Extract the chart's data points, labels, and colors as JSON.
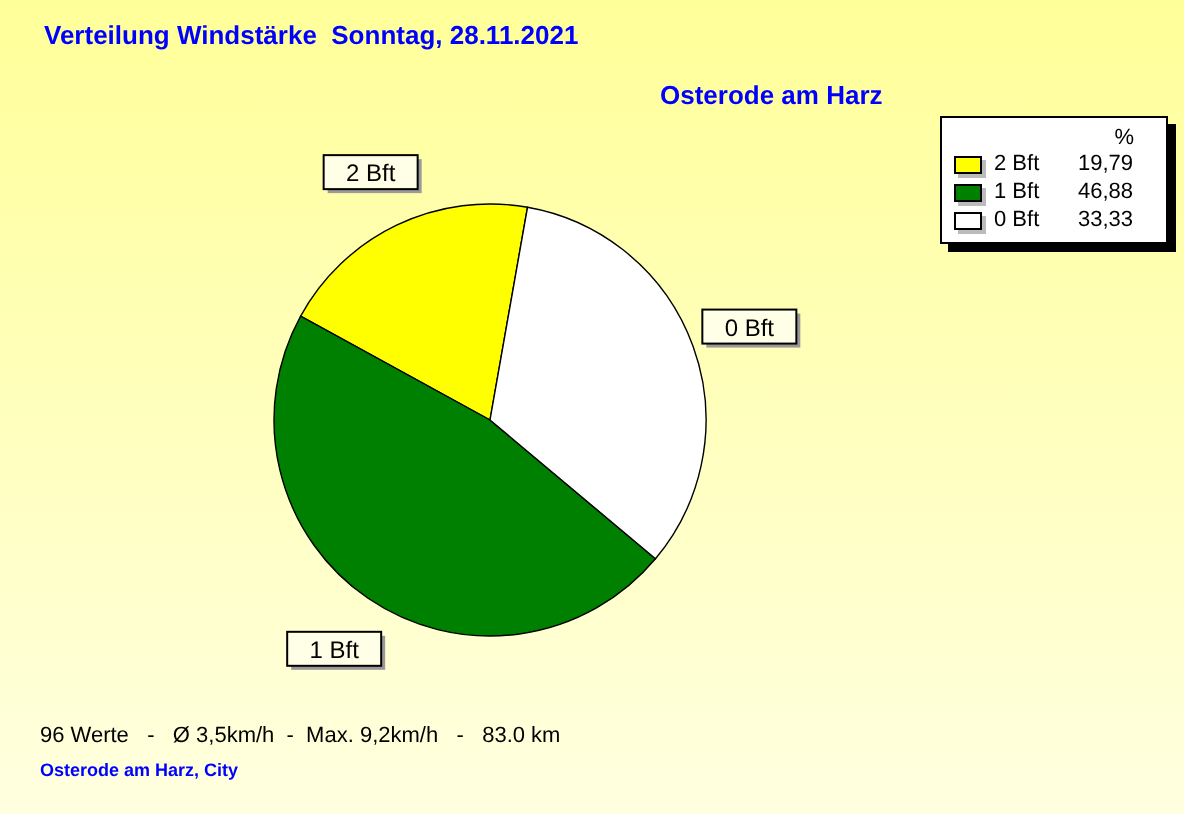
{
  "chart_data": {
    "type": "pie",
    "title": "Verteilung Windstärke  Sonntag, 28.11.2021",
    "subtitle": "Osterode am Harz",
    "categories": [
      "2 Bft",
      "1 Bft",
      "0 Bft"
    ],
    "values": [
      19.79,
      46.88,
      33.33
    ],
    "value_labels": [
      "19,79",
      "46,88",
      "33,33"
    ],
    "colors": [
      "#ffff00",
      "#008000",
      "#ffffff"
    ],
    "legend": "top right",
    "legend_title": "%",
    "annotations": [
      "96 Werte   -   Ø 3,5km/h  -  Max. 9,2km/h   -   83.0 km",
      "Osterode am Harz, City"
    ]
  }
}
